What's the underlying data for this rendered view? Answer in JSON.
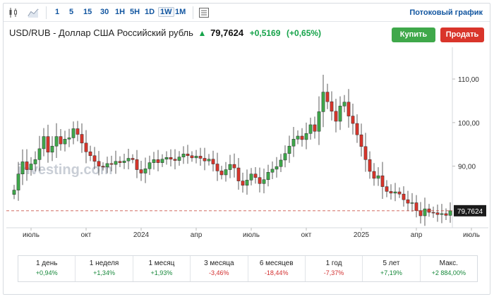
{
  "toolbar": {
    "timeframes": [
      "1",
      "5",
      "15",
      "30",
      "1H",
      "5H",
      "1D",
      "1W",
      "1M"
    ],
    "active_timeframe": "1W",
    "streaming_label": "Потоковый график"
  },
  "header": {
    "title": "USD/RUB - Доллар США Российский рубль",
    "price": "79,7624",
    "change": "+0,5169",
    "change_pct": "(+0,65%)",
    "buy_label": "Купить",
    "sell_label": "Продать"
  },
  "watermark": "investing.com",
  "colors": {
    "up": "#3ea84a",
    "down": "#d9352b",
    "accent": "#1256a0"
  },
  "chart_data": {
    "type": "candlestick",
    "y_ticks": [
      90,
      100,
      110
    ],
    "y_tick_labels": [
      "90,00",
      "100,00",
      "110,00"
    ],
    "ylim": [
      76.5,
      116
    ],
    "x_labels": [
      "июль",
      "окт",
      "2024",
      "апр",
      "июль",
      "окт",
      "2025",
      "апр",
      "июль"
    ],
    "x_label_pos": [
      4,
      17,
      30,
      43,
      56,
      69,
      82,
      95,
      108
    ],
    "current_price": 79.7624,
    "current_price_label": "79,7624",
    "closes": [
      84.5,
      88.2,
      91.0,
      89.2,
      90.5,
      91.5,
      94.0,
      96.8,
      93.2,
      94.6,
      96.8,
      95.1,
      96.2,
      96.5,
      98.6,
      97.3,
      95.3,
      93.3,
      92.4,
      91.1,
      90.0,
      89.8,
      90.6,
      90.4,
      91.1,
      90.8,
      91.2,
      91.8,
      91.5,
      89.2,
      88.4,
      89.4,
      90.8,
      91.5,
      90.8,
      91.6,
      92.0,
      91.6,
      91.3,
      92.1,
      92.8,
      92.4,
      91.9,
      92.3,
      91.8,
      91.2,
      91.6,
      90.5,
      88.9,
      88.0,
      89.2,
      90.4,
      89.6,
      86.6,
      85.6,
      86.8,
      88.2,
      87.4,
      86.0,
      86.9,
      88.6,
      89.3,
      89.9,
      91.4,
      92.9,
      94.6,
      96.2,
      96.9,
      96.1,
      97.5,
      99.5,
      98.0,
      102.5,
      107.0,
      104.8,
      102.6,
      100.3,
      103.8,
      104.7,
      101.5,
      99.8,
      97.2,
      94.5,
      91.5,
      88.8,
      87.2,
      87.8,
      85.3,
      84.2,
      83.8,
      84.1,
      83.6,
      82.3,
      81.5,
      81.6,
      79.8,
      78.6,
      80.2,
      79.4,
      79.3,
      78.9,
      79.1,
      78.7,
      79.76
    ]
  },
  "performance": [
    {
      "label": "1 день",
      "value": "+0,94%",
      "dir": "pos"
    },
    {
      "label": "1 неделя",
      "value": "+1,34%",
      "dir": "pos"
    },
    {
      "label": "1 месяц",
      "value": "+1,93%",
      "dir": "pos"
    },
    {
      "label": "3 месяца",
      "value": "-3,46%",
      "dir": "neg"
    },
    {
      "label": "6 месяцев",
      "value": "-18,44%",
      "dir": "neg"
    },
    {
      "label": "1 год",
      "value": "-7,37%",
      "dir": "neg"
    },
    {
      "label": "5 лет",
      "value": "+7,19%",
      "dir": "pos"
    },
    {
      "label": "Макс.",
      "value": "+2 884,00%",
      "dir": "pos"
    }
  ]
}
